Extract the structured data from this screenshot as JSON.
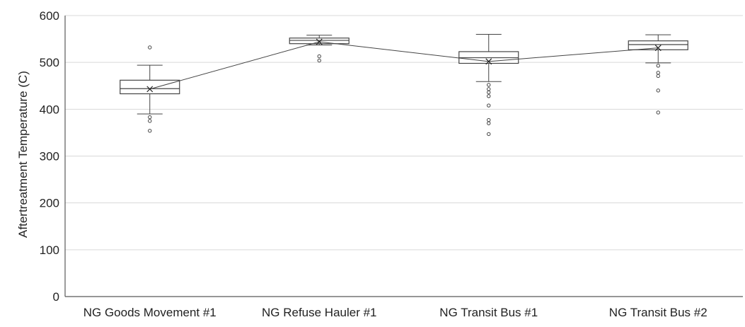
{
  "chart_data": {
    "type": "box",
    "title": "",
    "xlabel": "",
    "ylabel": "Aftertreatment Temperature (C)",
    "ylim": [
      0,
      600
    ],
    "yticks": [
      0,
      100,
      200,
      300,
      400,
      500,
      600
    ],
    "grid": true,
    "legend": "none",
    "categories": [
      "NG Goods Movement #1",
      "NG Refuse Hauler #1",
      "NG Transit Bus #1",
      "NG Transit Bus #2"
    ],
    "boxes": [
      {
        "whisker_low": 390,
        "q1": 433,
        "median": 444,
        "q3": 462,
        "whisker_high": 494,
        "mean": 443,
        "outliers": [
          532,
          383,
          375,
          354
        ]
      },
      {
        "whisker_low": 537,
        "q1": 540,
        "median": 547,
        "q3": 552,
        "whisker_high": 558,
        "mean": 544,
        "outliers": [
          513,
          504
        ]
      },
      {
        "whisker_low": 459,
        "q1": 498,
        "median": 510,
        "q3": 523,
        "whisker_high": 560,
        "mean": 502,
        "outliers": [
          452,
          443,
          436,
          428,
          408,
          377,
          370,
          347
        ]
      },
      {
        "whisker_low": 499,
        "q1": 527,
        "median": 538,
        "q3": 546,
        "whisker_high": 559,
        "mean": 531,
        "outliers": [
          493,
          478,
          471,
          440,
          393
        ]
      }
    ],
    "mean_line": true,
    "colors": {
      "box": "#444444",
      "grid": "#d9d9d9",
      "axis": "#595959",
      "text": "#222222"
    }
  }
}
